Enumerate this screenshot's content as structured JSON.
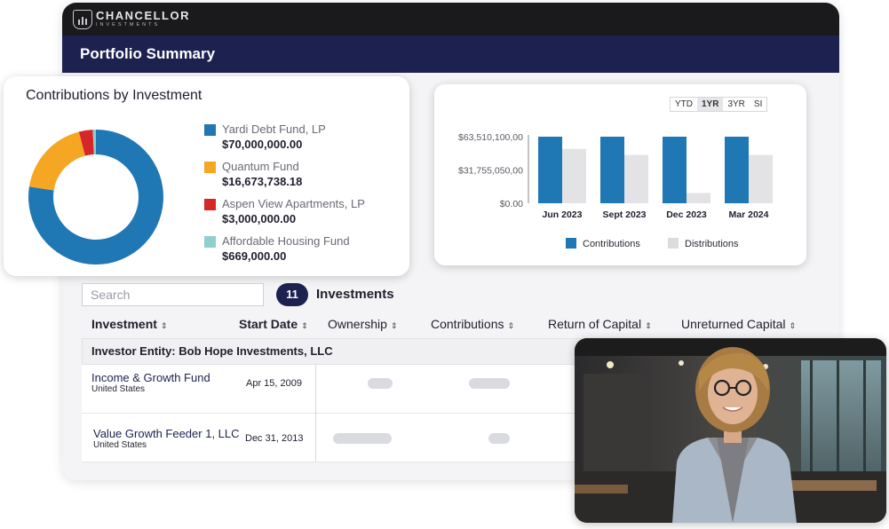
{
  "brand": {
    "name": "CHANCELLOR",
    "subtitle": "INVESTMENTS"
  },
  "header": {
    "title": "Portfolio Summary"
  },
  "contributions_card": {
    "title": "Contributions by Investment",
    "items": [
      {
        "label": "Yardi Debt Fund, LP",
        "value": "$70,000,000.00",
        "color": "#1f77b4"
      },
      {
        "label": "Quantum Fund",
        "value": "$16,673,738.18",
        "color": "#f5a623"
      },
      {
        "label": "Aspen View Apartments, LP",
        "value": "$3,000,000.00",
        "color": "#d62728"
      },
      {
        "label": "Affordable Housing Fund",
        "value": "$669,000.00",
        "color": "#8ecfcf"
      }
    ]
  },
  "chart_data": {
    "type": "bar",
    "categories": [
      "Jun 2023",
      "Sept 2023",
      "Dec 2023",
      "Mar 2024"
    ],
    "series": [
      {
        "name": "Contributions",
        "values": [
          63510100,
          63510100,
          63510100,
          63510100
        ],
        "color": "#1f77b4"
      },
      {
        "name": "Distributions",
        "values": [
          51800000,
          46100000,
          9800000,
          46100000
        ],
        "color": "#e3e3e6"
      }
    ],
    "tick_labels": [
      "$63,510,100,00",
      "$31,755,050,00",
      "$0.00"
    ],
    "ylim": [
      0,
      63510100
    ],
    "legend": "bottom",
    "grid": false
  },
  "range_buttons": [
    "YTD",
    "1YR",
    "3YR",
    "SI"
  ],
  "range_selected": "1YR",
  "table": {
    "search_placeholder": "Search",
    "count": "11",
    "count_label": "Investments",
    "columns": [
      "Investment",
      "Start Date",
      "Ownership",
      "Contributions",
      "Return of Capital",
      "Unreturned Capital"
    ],
    "sort_icon": "sort-icon",
    "entity": "Investor Entity: Bob Hope Investments, LLC",
    "rows": [
      {
        "name": "Income & Growth Fund",
        "country": "United States",
        "start_date": "Apr 15, 2009"
      },
      {
        "name": "Value Growth Feeder 1, LLC",
        "country": "United States",
        "start_date": "Dec 31, 2013"
      }
    ]
  }
}
